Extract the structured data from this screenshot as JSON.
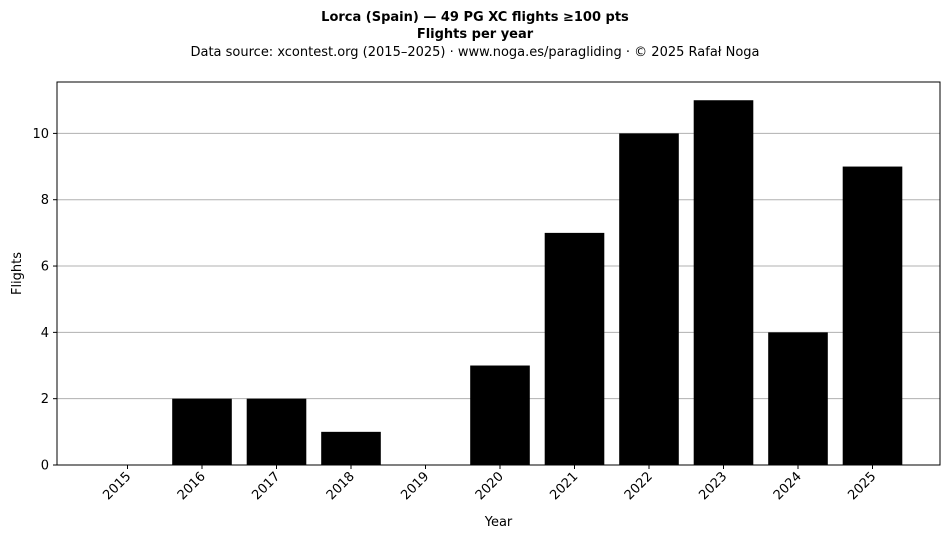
{
  "chart_data": {
    "type": "bar",
    "title": "Lorca (Spain)  —  49 PG XC flights ≥100 pts",
    "subtitle": "Flights per year",
    "source_line": "Data source: xcontest.org (2015–2025)  ·  www.noga.es/paragliding  ·  © 2025 Rafał Noga",
    "xlabel": "Year",
    "ylabel": "Flights",
    "categories": [
      "2015",
      "2016",
      "2017",
      "2018",
      "2019",
      "2020",
      "2021",
      "2022",
      "2023",
      "2024",
      "2025"
    ],
    "values": [
      0,
      2,
      2,
      1,
      0,
      3,
      7,
      10,
      11,
      4,
      9
    ],
    "ylim": [
      0,
      11.55
    ],
    "yticks": [
      0,
      2,
      4,
      6,
      8,
      10
    ],
    "grid": "y",
    "bar_color": "#000000",
    "grid_color": "#b0b0b0"
  }
}
